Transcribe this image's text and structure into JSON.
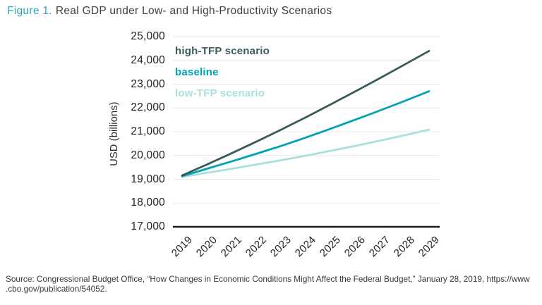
{
  "title": {
    "prefix": "Figure 1.",
    "text": "Real GDP under Low- and High-Productivity Scenarios"
  },
  "chart_data": {
    "type": "line",
    "title": "Real GDP under Low- and High-Productivity Scenarios",
    "xlabel": "",
    "ylabel": "USD (billions)",
    "x": [
      2019,
      2020,
      2021,
      2022,
      2023,
      2024,
      2025,
      2026,
      2027,
      2028,
      2029
    ],
    "series": [
      {
        "name": "low-TFP scenario",
        "color": "#a9e0dc",
        "values": [
          19100,
          19270,
          19440,
          19620,
          19800,
          19990,
          20190,
          20400,
          20620,
          20850,
          21090
        ]
      },
      {
        "name": "baseline",
        "color": "#00a3b2",
        "values": [
          19130,
          19440,
          19750,
          20070,
          20400,
          20750,
          21120,
          21500,
          21890,
          22290,
          22700
        ]
      },
      {
        "name": "high-TFP scenario",
        "color": "#3b5a5c",
        "values": [
          19160,
          19620,
          20090,
          20580,
          21080,
          21600,
          22140,
          22690,
          23250,
          23820,
          24400
        ]
      }
    ],
    "legend": [
      {
        "label": "high-TFP scenario",
        "color": "#3b5a5c"
      },
      {
        "label": "baseline",
        "color": "#00a3b2"
      },
      {
        "label": "low-TFP scenario",
        "color": "#a9e0dc"
      }
    ],
    "legend_position": "top-left-inside",
    "ylim": [
      17000,
      25000
    ],
    "yticks": [
      {
        "value": 25000,
        "label": "25,000"
      },
      {
        "value": 24000,
        "label": "24,000"
      },
      {
        "value": 23000,
        "label": "23,000"
      },
      {
        "value": 22000,
        "label": "22,000"
      },
      {
        "value": 21000,
        "label": "21,000"
      },
      {
        "value": 20000,
        "label": "20,000"
      },
      {
        "value": 19000,
        "label": "19,000"
      },
      {
        "value": 18000,
        "label": "18,000"
      },
      {
        "value": 17000,
        "label": "17,000"
      }
    ],
    "grid": true,
    "grid_color": "#e8e8e8",
    "axis_color": "#1a1a1a",
    "title_accent_color": "#2aa7b5"
  },
  "source_lines": [
    "Source: Congressional Budget Office, “How Changes in Economic Conditions Might Affect the Federal Budget,” January 28, 2019, https://www",
    ".cbo.gov/publication/54052."
  ]
}
